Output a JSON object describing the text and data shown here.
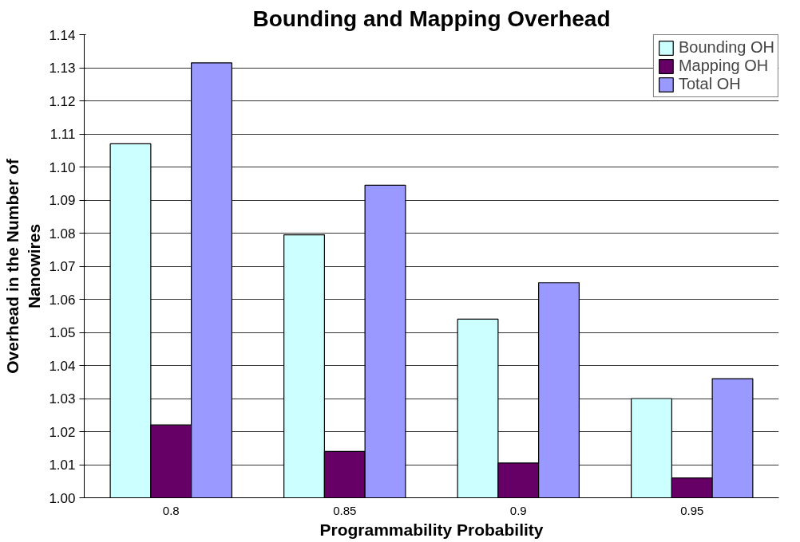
{
  "chart_data": {
    "type": "bar",
    "title": "Bounding and Mapping Overhead",
    "xlabel": "Programmability Probability",
    "ylabel": "Overhead in the Number of Nanowires",
    "categories": [
      "0.8",
      "0.85",
      "0.9",
      "0.95"
    ],
    "series": [
      {
        "name": "Bounding OH",
        "color": "#ccffff",
        "values": [
          1.107,
          1.0795,
          1.054,
          1.03
        ]
      },
      {
        "name": "Mapping OH",
        "color": "#660066",
        "values": [
          1.022,
          1.014,
          1.0105,
          1.006
        ]
      },
      {
        "name": "Total OH",
        "color": "#9999ff",
        "values": [
          1.1315,
          1.0945,
          1.065,
          1.036
        ]
      }
    ],
    "ylim": [
      1.0,
      1.14
    ],
    "yticks": [
      {
        "value": 1.0,
        "label": "1.00"
      },
      1.01,
      1.02,
      1.03,
      1.04,
      1.05,
      1.06,
      1.07,
      1.08,
      1.09,
      {
        "value": 1.1,
        "label": "1.10"
      },
      1.11,
      1.12,
      1.13,
      1.14
    ],
    "grid": "y",
    "legend": "top right"
  }
}
